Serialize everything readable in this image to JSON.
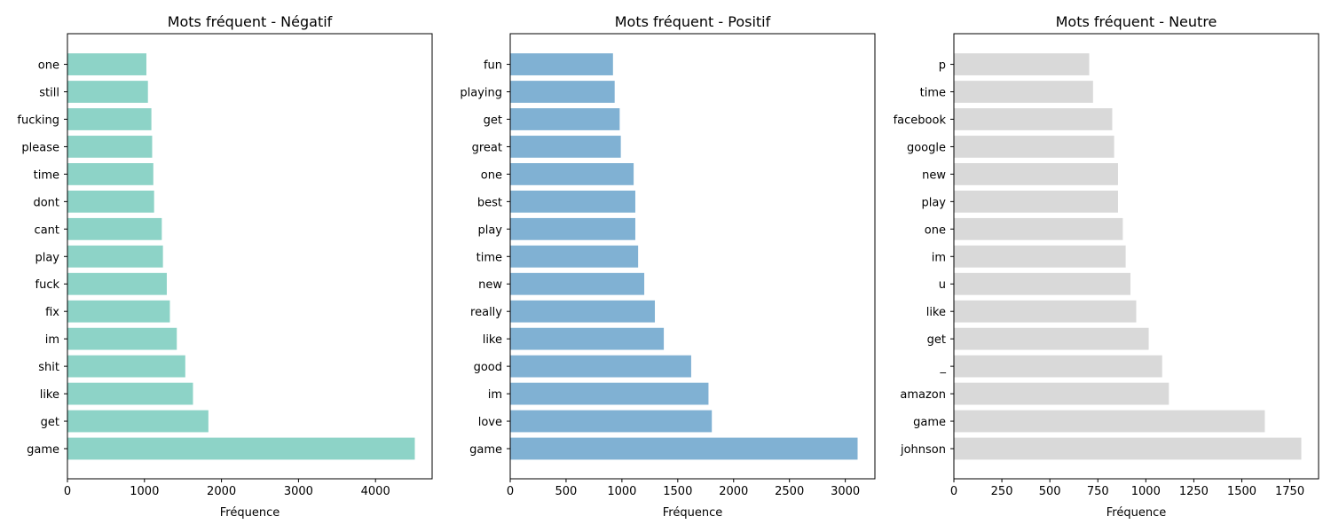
{
  "chart_data": [
    {
      "type": "bar",
      "orientation": "horizontal",
      "title": "Mots fréquent - Négatif",
      "xlabel": "Fréquence",
      "ylabel": "",
      "color": "#8dd3c7",
      "categories": [
        "game",
        "get",
        "like",
        "shit",
        "im",
        "fix",
        "fuck",
        "play",
        "cant",
        "dont",
        "time",
        "please",
        "fucking",
        "still",
        "one"
      ],
      "values": [
        4510,
        1830,
        1630,
        1530,
        1420,
        1330,
        1290,
        1240,
        1225,
        1125,
        1115,
        1100,
        1090,
        1045,
        1025
      ],
      "xlim": [
        0,
        4735
      ],
      "xticks": [
        0,
        1000,
        2000,
        3000,
        4000
      ],
      "grid": false
    },
    {
      "type": "bar",
      "orientation": "horizontal",
      "title": "Mots fréquent - Positif",
      "xlabel": "Fréquence",
      "ylabel": "",
      "color": "#80b1d3",
      "categories": [
        "game",
        "love",
        "im",
        "good",
        "like",
        "really",
        "new",
        "time",
        "play",
        "best",
        "one",
        "great",
        "get",
        "playing",
        "fun"
      ],
      "values": [
        3110,
        1805,
        1775,
        1620,
        1375,
        1295,
        1200,
        1145,
        1120,
        1120,
        1105,
        990,
        980,
        935,
        920
      ],
      "xlim": [
        0,
        3265
      ],
      "xticks": [
        0,
        500,
        1000,
        1500,
        2000,
        2500,
        3000
      ],
      "grid": false
    },
    {
      "type": "bar",
      "orientation": "horizontal",
      "title": "Mots fréquent - Neutre",
      "xlabel": "Fréquence",
      "ylabel": "",
      "color": "#d9d9d9",
      "categories": [
        "johnson",
        "game",
        "amazon",
        "_",
        "get",
        "like",
        "u",
        "im",
        "one",
        "play",
        "new",
        "google",
        "facebook",
        "time",
        "p"
      ],
      "values": [
        1810,
        1620,
        1120,
        1085,
        1015,
        950,
        920,
        895,
        880,
        855,
        855,
        835,
        825,
        725,
        705
      ],
      "xlim": [
        0,
        1900
      ],
      "xticks": [
        0,
        250,
        500,
        750,
        1000,
        1250,
        1500,
        1750
      ],
      "grid": false
    }
  ]
}
